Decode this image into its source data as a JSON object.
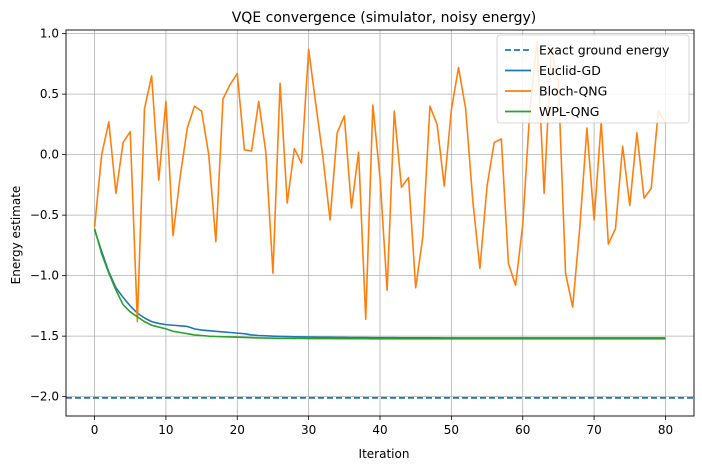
{
  "chart_data": {
    "type": "line",
    "title": "VQE convergence (simulator, noisy energy)",
    "xlabel": "Iteration",
    "ylabel": "Energy estimate",
    "xlim": [
      -4,
      84
    ],
    "ylim": [
      -2.16,
      1.03
    ],
    "xticks": [
      0,
      10,
      20,
      30,
      40,
      50,
      60,
      70,
      80
    ],
    "yticks": [
      -2.0,
      -1.5,
      -1.0,
      -0.5,
      0.0,
      0.5,
      1.0
    ],
    "ytick_labels": [
      "−2.0",
      "−1.5",
      "−1.0",
      "−0.5",
      "0.0",
      "0.5",
      "1.0"
    ],
    "grid": true,
    "legend_position": "top-right",
    "reference_line": {
      "name": "Exact ground energy",
      "value": -2.01,
      "color": "#1f77b4",
      "style": "dashed"
    },
    "series": [
      {
        "name": "Euclid-GD",
        "color": "#1f77b4",
        "x": [
          0,
          1,
          2,
          3,
          4,
          5,
          6,
          7,
          8,
          9,
          10,
          11,
          12,
          13,
          14,
          15,
          16,
          17,
          18,
          19,
          20,
          21,
          22,
          23,
          24,
          25,
          26,
          27,
          28,
          29,
          30,
          31,
          32,
          33,
          34,
          35,
          36,
          37,
          38,
          39,
          40,
          41,
          42,
          43,
          44,
          45,
          46,
          47,
          48,
          49,
          50,
          51,
          52,
          53,
          54,
          55,
          56,
          57,
          58,
          59,
          60,
          61,
          62,
          63,
          64,
          65,
          66,
          67,
          68,
          69,
          70,
          71,
          72,
          73,
          74,
          75,
          76,
          77,
          78,
          79,
          80
        ],
        "values": [
          -0.62,
          -0.8,
          -0.97,
          -1.1,
          -1.18,
          -1.25,
          -1.31,
          -1.35,
          -1.38,
          -1.395,
          -1.405,
          -1.41,
          -1.415,
          -1.42,
          -1.44,
          -1.45,
          -1.455,
          -1.46,
          -1.465,
          -1.47,
          -1.475,
          -1.48,
          -1.49,
          -1.495,
          -1.497,
          -1.5,
          -1.502,
          -1.503,
          -1.505,
          -1.507,
          -1.508,
          -1.509,
          -1.51,
          -1.51,
          -1.511,
          -1.511,
          -1.512,
          -1.512,
          -1.512,
          -1.513,
          -1.513,
          -1.513,
          -1.513,
          -1.514,
          -1.514,
          -1.514,
          -1.514,
          -1.514,
          -1.514,
          -1.515,
          -1.515,
          -1.515,
          -1.515,
          -1.515,
          -1.515,
          -1.515,
          -1.515,
          -1.515,
          -1.515,
          -1.515,
          -1.515,
          -1.515,
          -1.515,
          -1.515,
          -1.515,
          -1.515,
          -1.515,
          -1.515,
          -1.515,
          -1.515,
          -1.515,
          -1.515,
          -1.515,
          -1.515,
          -1.515,
          -1.515,
          -1.515,
          -1.515,
          -1.515,
          -1.515,
          -1.515
        ]
      },
      {
        "name": "Bloch-QNG",
        "color": "#ff7f0e",
        "x": [
          0,
          1,
          2,
          3,
          4,
          5,
          6,
          7,
          8,
          9,
          10,
          11,
          12,
          13,
          14,
          15,
          16,
          17,
          18,
          19,
          20,
          21,
          22,
          23,
          24,
          25,
          26,
          27,
          28,
          29,
          30,
          31,
          32,
          33,
          34,
          35,
          36,
          37,
          38,
          39,
          40,
          41,
          42,
          43,
          44,
          45,
          46,
          47,
          48,
          49,
          50,
          51,
          52,
          53,
          54,
          55,
          56,
          57,
          58,
          59,
          60,
          61,
          62,
          63,
          64,
          65,
          66,
          67,
          68,
          69,
          70,
          71,
          72,
          73,
          74,
          75,
          76,
          77,
          78,
          79,
          80
        ],
        "values": [
          -0.6,
          0.0,
          0.27,
          -0.32,
          0.1,
          0.19,
          -1.38,
          0.38,
          0.65,
          -0.21,
          0.44,
          -0.67,
          -0.18,
          0.22,
          0.4,
          0.36,
          0.0,
          -0.72,
          0.46,
          0.58,
          0.67,
          0.04,
          0.03,
          0.44,
          0.02,
          -0.98,
          0.59,
          -0.4,
          0.05,
          -0.07,
          0.87,
          0.42,
          -0.02,
          -0.54,
          0.18,
          0.32,
          -0.44,
          0.02,
          -1.36,
          0.41,
          -0.19,
          -1.12,
          0.36,
          -0.27,
          -0.19,
          -1.1,
          -0.68,
          0.4,
          0.25,
          -0.26,
          0.37,
          0.72,
          0.38,
          -0.38,
          -0.94,
          -0.26,
          0.1,
          0.13,
          -0.9,
          -1.08,
          -0.58,
          0.37,
          0.93,
          -0.32,
          0.87,
          0.6,
          -0.98,
          -1.26,
          -0.6,
          0.22,
          -0.54,
          0.27,
          -0.74,
          -0.61,
          0.07,
          -0.42,
          0.18,
          -0.36,
          -0.28,
          0.36,
          0.26
        ]
      },
      {
        "name": "WPL-QNG",
        "color": "#2ca02c",
        "x": [
          0,
          1,
          2,
          3,
          4,
          5,
          6,
          7,
          8,
          9,
          10,
          11,
          12,
          13,
          14,
          15,
          16,
          17,
          18,
          19,
          20,
          21,
          22,
          23,
          24,
          25,
          26,
          27,
          28,
          29,
          30,
          31,
          32,
          33,
          34,
          35,
          36,
          37,
          38,
          39,
          40,
          41,
          42,
          43,
          44,
          45,
          46,
          47,
          48,
          49,
          50,
          51,
          52,
          53,
          54,
          55,
          56,
          57,
          58,
          59,
          60,
          61,
          62,
          63,
          64,
          65,
          66,
          67,
          68,
          69,
          70,
          71,
          72,
          73,
          74,
          75,
          76,
          77,
          78,
          79,
          80
        ],
        "values": [
          -0.61,
          -0.82,
          -0.98,
          -1.12,
          -1.24,
          -1.3,
          -1.34,
          -1.38,
          -1.41,
          -1.425,
          -1.44,
          -1.46,
          -1.47,
          -1.48,
          -1.49,
          -1.495,
          -1.5,
          -1.503,
          -1.505,
          -1.507,
          -1.509,
          -1.511,
          -1.513,
          -1.515,
          -1.516,
          -1.517,
          -1.518,
          -1.518,
          -1.519,
          -1.519,
          -1.52,
          -1.52,
          -1.52,
          -1.52,
          -1.521,
          -1.521,
          -1.521,
          -1.521,
          -1.521,
          -1.522,
          -1.522,
          -1.522,
          -1.522,
          -1.522,
          -1.522,
          -1.522,
          -1.522,
          -1.522,
          -1.522,
          -1.522,
          -1.522,
          -1.522,
          -1.522,
          -1.522,
          -1.522,
          -1.522,
          -1.522,
          -1.522,
          -1.522,
          -1.522,
          -1.522,
          -1.522,
          -1.522,
          -1.522,
          -1.522,
          -1.522,
          -1.522,
          -1.522,
          -1.522,
          -1.522,
          -1.522,
          -1.522,
          -1.522,
          -1.522,
          -1.522,
          -1.522,
          -1.522,
          -1.522,
          -1.522,
          -1.522,
          -1.522
        ]
      }
    ]
  }
}
